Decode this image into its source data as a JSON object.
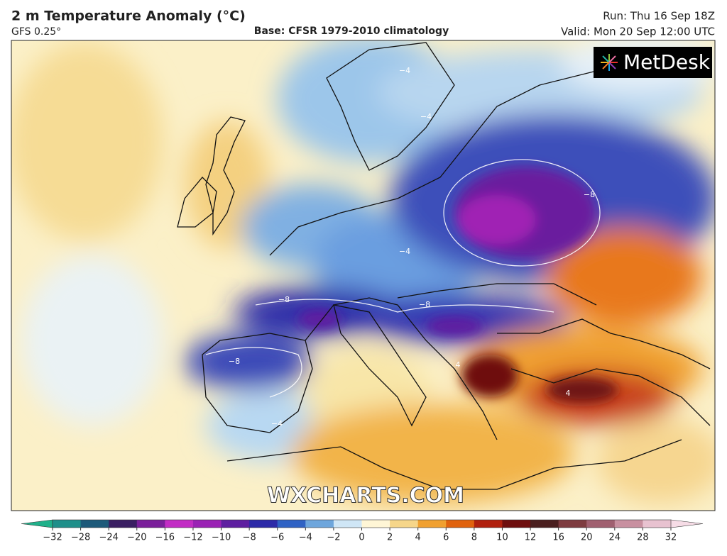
{
  "header": {
    "title": "2 m Temperature Anomaly (°C)",
    "model": "GFS 0.25°",
    "base": "Base: CFSR 1979-2010 climatology",
    "run": "Run: Thu 16 Sep 18Z",
    "valid": "Valid: Mon 20 Sep 12:00 UTC"
  },
  "logo": "MetDesk",
  "watermark": "WXCHARTS.COM",
  "contour_labels": [
    "−4",
    "−4",
    "−8",
    "−8",
    "−8",
    "−8",
    "−4",
    "4",
    "4",
    "−4"
  ],
  "colorbar": {
    "ticks": [
      {
        "value": -32,
        "label": "−32"
      },
      {
        "value": -28,
        "label": "−28"
      },
      {
        "value": -24,
        "label": "−24"
      },
      {
        "value": -20,
        "label": "−20"
      },
      {
        "value": -16,
        "label": "−16"
      },
      {
        "value": -12,
        "label": "−12"
      },
      {
        "value": -10,
        "label": "−10"
      },
      {
        "value": -8,
        "label": "−8"
      },
      {
        "value": -6,
        "label": "−6"
      },
      {
        "value": -4,
        "label": "−4"
      },
      {
        "value": -2,
        "label": "−2"
      },
      0,
      2,
      4,
      6,
      8,
      10,
      12,
      16,
      20,
      24,
      28,
      32
    ],
    "colors": [
      "#1f8f8a",
      "#1d5a7a",
      "#3a1f62",
      "#7a1f9a",
      "#c22cc4",
      "#9a22b4",
      "#5e1fa0",
      "#2c2aa8",
      "#2f62c4",
      "#6ea6dc",
      "#cfe6f6",
      "#fff6d6",
      "#f6d68a",
      "#f0a030",
      "#e0620e",
      "#b0200e",
      "#6e0e0e",
      "#4a1f1f",
      "#7e3c40",
      "#a06070",
      "#c890a0",
      "#e8c2d0"
    ],
    "under_color": "#20b08a",
    "over_color": "#f6dce6"
  }
}
